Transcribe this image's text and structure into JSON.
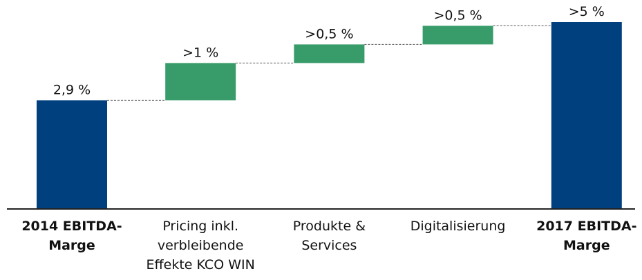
{
  "chart_data": {
    "type": "waterfall",
    "categories": [
      "2014 EBITDA-\nMarge",
      "Pricing inkl.\nverbleibende\nEffekte KCO WIN",
      "Produkte &\nServices",
      "Digitalisierung",
      "2017 EBITDA-\nMarge"
    ],
    "values": [
      2.9,
      1,
      0.5,
      0.5,
      5
    ],
    "value_labels": [
      "2,9 %",
      ">1 %",
      ">0,5 %",
      ">0,5 %",
      ">5 %"
    ],
    "measure": [
      "absolute",
      "relative",
      "relative",
      "relative",
      "total"
    ],
    "colors": [
      "#00407f",
      "#389c6a",
      "#389c6a",
      "#389c6a",
      "#00407f"
    ]
  }
}
